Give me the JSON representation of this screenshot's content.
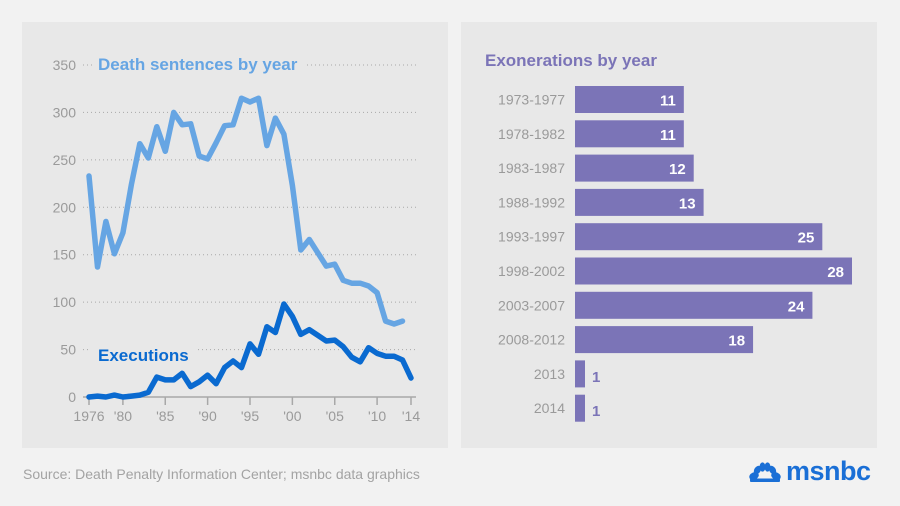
{
  "chart_data": [
    {
      "type": "line",
      "title": "",
      "xlabel": "",
      "ylabel": "",
      "ylim": [
        0,
        350
      ],
      "xlim": [
        1976,
        2014
      ],
      "yticks": [
        0,
        50,
        100,
        150,
        200,
        250,
        300,
        350
      ],
      "xticks": [
        1976,
        1980,
        1985,
        1990,
        1995,
        2000,
        2005,
        2010,
        2014
      ],
      "xtick_labels": [
        "1976",
        "'80",
        "'85",
        "'90",
        "'95",
        "'00",
        "'05",
        "'10",
        "'14"
      ],
      "grid": true,
      "series": [
        {
          "name": "Death sentences by year",
          "color": "#66a5e3",
          "x": [
            1976,
            1977,
            1978,
            1979,
            1980,
            1981,
            1982,
            1983,
            1984,
            1985,
            1986,
            1987,
            1988,
            1989,
            1990,
            1991,
            1992,
            1993,
            1994,
            1995,
            1996,
            1997,
            1998,
            1999,
            2000,
            2001,
            2002,
            2003,
            2004,
            2005,
            2006,
            2007,
            2008,
            2009,
            2010,
            2011,
            2012,
            2013
          ],
          "values": [
            233,
            137,
            185,
            151,
            173,
            224,
            267,
            252,
            285,
            259,
            300,
            287,
            288,
            254,
            251,
            268,
            286,
            287,
            315,
            311,
            315,
            265,
            294,
            277,
            223,
            155,
            166,
            152,
            138,
            140,
            123,
            120,
            120,
            117,
            110,
            80,
            77,
            80
          ]
        },
        {
          "name": "Executions",
          "color": "#0a6ad0",
          "x": [
            1976,
            1977,
            1978,
            1979,
            1980,
            1981,
            1982,
            1983,
            1984,
            1985,
            1986,
            1987,
            1988,
            1989,
            1990,
            1991,
            1992,
            1993,
            1994,
            1995,
            1996,
            1997,
            1998,
            1999,
            2000,
            2001,
            2002,
            2003,
            2004,
            2005,
            2006,
            2007,
            2008,
            2009,
            2010,
            2011,
            2012,
            2013,
            2014
          ],
          "values": [
            0,
            1,
            0,
            2,
            0,
            1,
            2,
            5,
            21,
            18,
            18,
            25,
            11,
            16,
            23,
            14,
            31,
            38,
            31,
            56,
            45,
            74,
            68,
            98,
            85,
            66,
            71,
            65,
            59,
            60,
            53,
            42,
            37,
            52,
            46,
            43,
            43,
            39,
            20
          ]
        }
      ]
    },
    {
      "type": "bar",
      "orientation": "horizontal",
      "title": "Exonerations by year",
      "color": "#7b74b7",
      "categories": [
        "1973-1977",
        "1978-1982",
        "1983-1987",
        "1988-1992",
        "1993-1997",
        "1998-2002",
        "2003-2007",
        "2008-2012",
        "2013",
        "2014"
      ],
      "values": [
        11,
        11,
        12,
        13,
        25,
        28,
        24,
        18,
        1,
        1
      ],
      "xlim": [
        0,
        28
      ]
    }
  ],
  "footer": {
    "source": "Source: Death Penalty Information Center; msnbc data graphics",
    "logo_text": "msnbc",
    "logo_color": "#1a6fd6"
  }
}
